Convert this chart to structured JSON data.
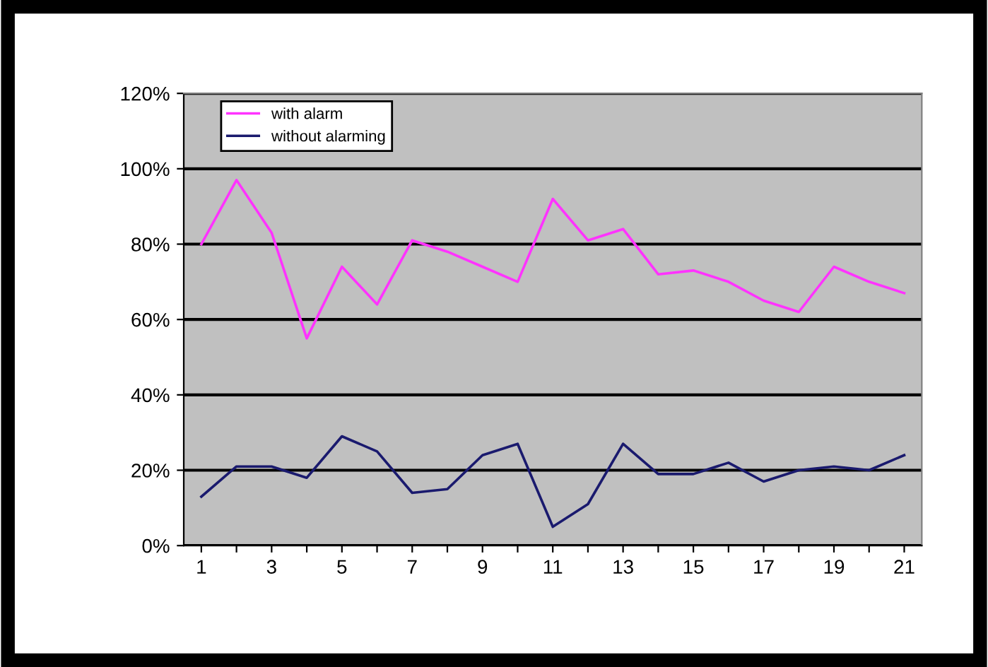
{
  "chart_data": {
    "type": "line",
    "categories": [
      "1",
      null,
      "3",
      null,
      "5",
      null,
      "7",
      null,
      "9",
      null,
      "11",
      null,
      "13",
      null,
      "15",
      null,
      "17",
      null,
      "19",
      null,
      "21"
    ],
    "series": [
      {
        "name": "with alarm",
        "color": "#ff33ff",
        "values": [
          80,
          97,
          83,
          55,
          74,
          64,
          81,
          78,
          74,
          70,
          92,
          81,
          84,
          72,
          73,
          70,
          65,
          62,
          74,
          70,
          67
        ]
      },
      {
        "name": "without alarming",
        "color": "#1a1a6e",
        "values": [
          13,
          21,
          21,
          18,
          29,
          25,
          14,
          15,
          24,
          27,
          5,
          11,
          27,
          19,
          19,
          22,
          17,
          20,
          21,
          20,
          24
        ]
      }
    ],
    "ylim": [
      0,
      120
    ],
    "yticks": [
      {
        "value": 0,
        "label": "0%"
      },
      {
        "value": 20,
        "label": "20%"
      },
      {
        "value": 40,
        "label": "40%"
      },
      {
        "value": 60,
        "label": "60%"
      },
      {
        "value": 80,
        "label": "80%"
      },
      {
        "value": 100,
        "label": "100%"
      },
      {
        "value": 120,
        "label": "120%"
      }
    ],
    "grid": "y",
    "legend": "top left",
    "marker": "none",
    "line_style": "solid"
  }
}
